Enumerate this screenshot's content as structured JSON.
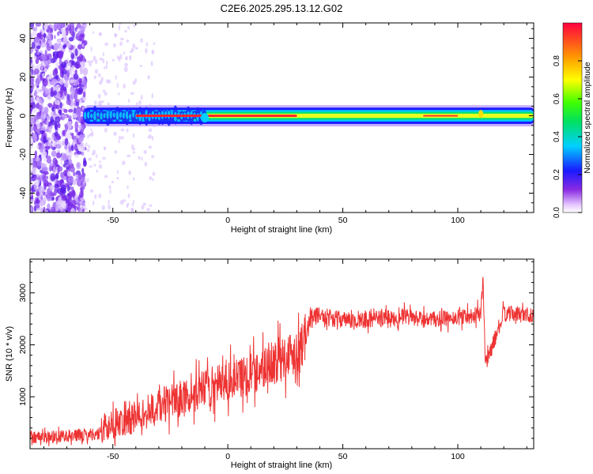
{
  "title": "C2E6.2025.295.13.12.G02",
  "chart_data": [
    {
      "type": "heatmap",
      "xlabel": "Height of straight line (km)",
      "ylabel": "Frequency (Hz)",
      "xlim": [
        -86,
        133
      ],
      "ylim": [
        -50,
        48
      ],
      "xticks": [
        -50,
        0,
        50,
        100
      ],
      "yticks": [
        -40,
        -20,
        0,
        20,
        40
      ],
      "colorbar": {
        "label": "Normalized spectral amplitude",
        "range": [
          0,
          1
        ],
        "ticks": [
          0.0,
          0.2,
          0.4,
          0.6,
          0.8
        ]
      },
      "ridge": {
        "description_values": {
          "center_frequency_hz": 0,
          "start_height_km": -62,
          "end_height_km": 133
        },
        "strong_segment_km": [
          -40,
          30
        ],
        "noise_region_km": [
          -86,
          -62
        ]
      }
    },
    {
      "type": "line",
      "xlabel": "Height of straight line (km)",
      "ylabel": "SNR (10 * v/v)",
      "xlim": [
        -86,
        133
      ],
      "ylim": [
        0,
        3650
      ],
      "xticks": [
        -50,
        0,
        50,
        100
      ],
      "yticks": [
        1000,
        2000,
        3000
      ],
      "series": [
        {
          "name": "SNR",
          "color": "#ee3333",
          "trend_x": [
            -86,
            -70,
            -55,
            -53,
            -40,
            -30,
            -20,
            -10,
            0,
            10,
            20,
            30,
            34,
            36,
            45,
            55,
            65,
            75,
            85,
            95,
            105,
            110,
            111,
            112,
            120,
            133
          ],
          "trend_y": [
            220,
            250,
            290,
            450,
            600,
            820,
            950,
            1150,
            1300,
            1450,
            1650,
            1900,
            2150,
            2600,
            2520,
            2450,
            2500,
            2550,
            2480,
            2500,
            2560,
            2600,
            3300,
            1600,
            2600,
            2580
          ]
        }
      ]
    }
  ]
}
